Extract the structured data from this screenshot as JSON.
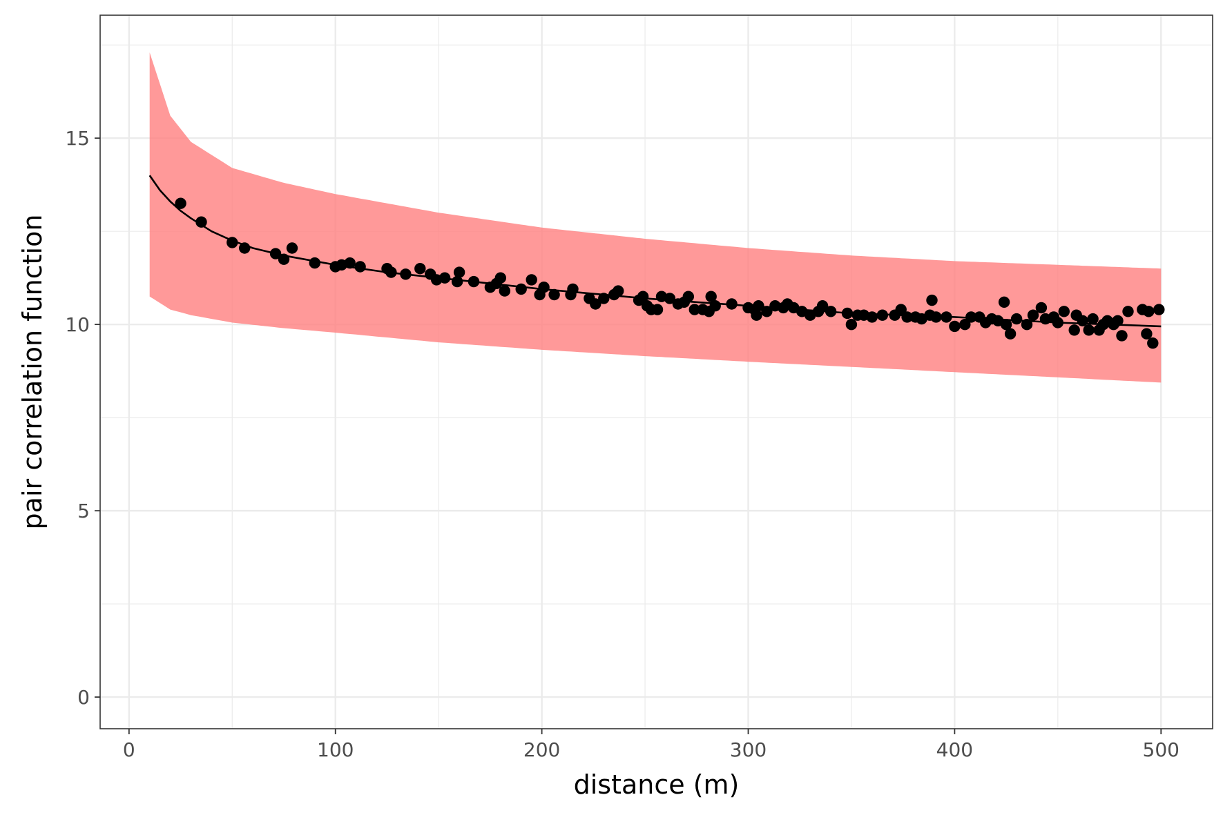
{
  "chart_data": {
    "type": "scatter",
    "title": "",
    "xlabel": "distance (m)",
    "ylabel": "pair correlation function",
    "xlim": [
      -14,
      525
    ],
    "ylim": [
      -0.85,
      18.3
    ],
    "x_ticks": [
      0,
      100,
      200,
      300,
      400,
      500
    ],
    "y_ticks": [
      0,
      5,
      10,
      15
    ],
    "x_tick_labels": [
      "0",
      "100",
      "200",
      "300",
      "400",
      "500"
    ],
    "y_tick_labels": [
      "0",
      "5",
      "10",
      "15"
    ],
    "grid": true,
    "legend": "none",
    "colors": {
      "band": "#ff7f80",
      "points": "#000000",
      "line": "#000000",
      "panel_border": "#333333",
      "grid": "#ebebeb"
    },
    "band": {
      "description_range": "ribbon",
      "x": [
        10,
        20,
        30,
        50,
        75,
        100,
        150,
        200,
        250,
        300,
        350,
        400,
        450,
        500
      ],
      "lower": [
        10.75,
        10.4,
        10.25,
        10.05,
        9.9,
        9.78,
        9.52,
        9.32,
        9.15,
        9.0,
        8.86,
        8.72,
        8.58,
        8.44
      ],
      "upper": [
        17.3,
        15.6,
        14.9,
        14.2,
        13.8,
        13.5,
        13.0,
        12.6,
        12.3,
        12.05,
        11.85,
        11.7,
        11.6,
        11.5
      ]
    },
    "fit_line": {
      "x": [
        10,
        15,
        20,
        25,
        30,
        40,
        50,
        60,
        75,
        100,
        125,
        150,
        175,
        200,
        250,
        300,
        350,
        400,
        450,
        500
      ],
      "y": [
        14.0,
        13.6,
        13.3,
        13.05,
        12.85,
        12.5,
        12.25,
        12.05,
        11.85,
        11.6,
        11.4,
        11.25,
        11.1,
        10.95,
        10.7,
        10.5,
        10.3,
        10.2,
        10.05,
        9.95
      ]
    },
    "series": [
      {
        "x": [
          25,
          35,
          50,
          56,
          71,
          75,
          79,
          90,
          100,
          103,
          107,
          112,
          125,
          127,
          134,
          141,
          146,
          149,
          153,
          159,
          160,
          167,
          175,
          178,
          180,
          182,
          190,
          195,
          199,
          201,
          206,
          214,
          215,
          223,
          226,
          230,
          235,
          237,
          247,
          249,
          251,
          253,
          256,
          258,
          262,
          266,
          269,
          271,
          274,
          278,
          281,
          282,
          284,
          292,
          300,
          303,
          304,
          305,
          309,
          313,
          317,
          319,
          322,
          326,
          330,
          334,
          336,
          340,
          348,
          350,
          353,
          356,
          360,
          365,
          371,
          374,
          377,
          381,
          384,
          388,
          389,
          391,
          396,
          400,
          405,
          408,
          412,
          415,
          418,
          421,
          424,
          425,
          427,
          430,
          435,
          438,
          442,
          444,
          448,
          450,
          453,
          458,
          459,
          462,
          465,
          467,
          470,
          472,
          474,
          477,
          479,
          481,
          484,
          491,
          493,
          494,
          496,
          499
        ],
        "y": [
          13.25,
          12.75,
          12.2,
          12.05,
          11.9,
          11.75,
          12.05,
          11.65,
          11.55,
          11.6,
          11.65,
          11.55,
          11.5,
          11.4,
          11.35,
          11.5,
          11.35,
          11.2,
          11.25,
          11.15,
          11.4,
          11.15,
          11.0,
          11.1,
          11.25,
          10.9,
          10.95,
          11.2,
          10.8,
          11.0,
          10.8,
          10.8,
          10.95,
          10.7,
          10.55,
          10.7,
          10.8,
          10.9,
          10.65,
          10.75,
          10.5,
          10.4,
          10.4,
          10.75,
          10.7,
          10.55,
          10.6,
          10.75,
          10.4,
          10.4,
          10.35,
          10.75,
          10.5,
          10.55,
          10.45,
          10.4,
          10.25,
          10.5,
          10.35,
          10.5,
          10.45,
          10.55,
          10.45,
          10.35,
          10.25,
          10.35,
          10.5,
          10.35,
          10.3,
          10.0,
          10.25,
          10.25,
          10.2,
          10.25,
          10.25,
          10.4,
          10.2,
          10.2,
          10.15,
          10.25,
          10.65,
          10.2,
          10.2,
          9.95,
          10.0,
          10.2,
          10.2,
          10.05,
          10.15,
          10.1,
          10.6,
          10.0,
          9.75,
          10.15,
          10.0,
          10.25,
          10.45,
          10.15,
          10.2,
          10.05,
          10.35,
          9.85,
          10.25,
          10.1,
          9.85,
          10.15,
          9.85,
          10.0,
          10.1,
          10.0,
          10.1,
          9.7,
          10.35,
          10.4,
          9.75,
          10.35,
          9.5,
          10.4
        ]
      }
    ]
  }
}
